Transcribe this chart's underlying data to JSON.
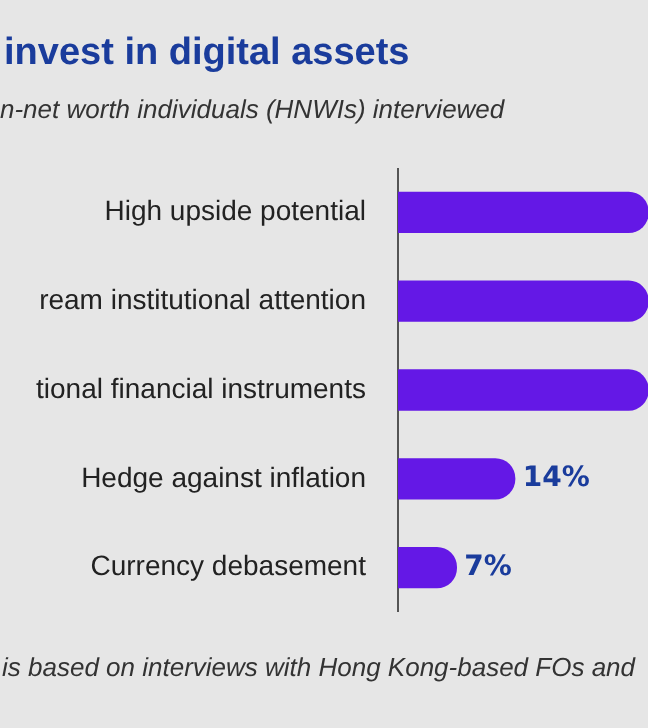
{
  "chart_data": {
    "type": "bar",
    "orientation": "horizontal",
    "title": "invest in digital assets",
    "subtitle": "n-net worth individuals (HNWIs) interviewed",
    "categories": [
      "High upside potential",
      "ream institutional attention",
      "tional financial instruments",
      "Hedge against inflation",
      "Currency debasement"
    ],
    "values": [
      30,
      30,
      30,
      14,
      7
    ],
    "value_labels": [
      null,
      null,
      null,
      "14%",
      "7%"
    ],
    "color": "#6418e6",
    "xlim": [
      0,
      30
    ],
    "annotations": [
      "is based on interviews with Hong Kong-based FOs and"
    ]
  }
}
